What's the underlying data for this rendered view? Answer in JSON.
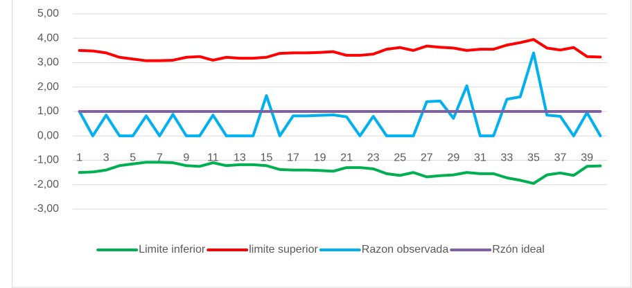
{
  "chart_data": {
    "type": "line",
    "categories": [
      1,
      null,
      3,
      null,
      5,
      null,
      7,
      null,
      9,
      null,
      11,
      null,
      13,
      null,
      15,
      null,
      17,
      null,
      19,
      null,
      21,
      null,
      23,
      null,
      25,
      null,
      27,
      null,
      29,
      null,
      31,
      null,
      33,
      null,
      35,
      null,
      37,
      null,
      39,
      null
    ],
    "series": [
      {
        "name": "Limite inferior",
        "color": "#00b050",
        "values": [
          -1.5,
          -1.48,
          -1.4,
          -1.22,
          -1.15,
          -1.08,
          -1.08,
          -1.1,
          -1.22,
          -1.25,
          -1.1,
          -1.22,
          -1.18,
          -1.18,
          -1.22,
          -1.38,
          -1.4,
          -1.4,
          -1.42,
          -1.45,
          -1.3,
          -1.3,
          -1.35,
          -1.55,
          -1.62,
          -1.5,
          -1.68,
          -1.63,
          -1.6,
          -1.5,
          -1.55,
          -1.55,
          -1.72,
          -1.82,
          -1.95,
          -1.6,
          -1.52,
          -1.62,
          -1.25,
          -1.23
        ]
      },
      {
        "name": "limite superior",
        "color": "#ff0000",
        "values": [
          3.5,
          3.48,
          3.4,
          3.22,
          3.15,
          3.08,
          3.08,
          3.1,
          3.22,
          3.25,
          3.1,
          3.22,
          3.18,
          3.18,
          3.22,
          3.38,
          3.4,
          3.4,
          3.42,
          3.45,
          3.3,
          3.3,
          3.35,
          3.55,
          3.62,
          3.5,
          3.68,
          3.63,
          3.6,
          3.5,
          3.55,
          3.55,
          3.72,
          3.82,
          3.95,
          3.6,
          3.52,
          3.62,
          3.25,
          3.23
        ]
      },
      {
        "name": "Razon observada",
        "color": "#00b0f0",
        "values": [
          1,
          0,
          0.85,
          0,
          0,
          0.82,
          0,
          0.88,
          0,
          0,
          0.85,
          0,
          0,
          0,
          1.65,
          0,
          0.82,
          0.82,
          0.84,
          0.86,
          0.78,
          0,
          0.8,
          0,
          0,
          0,
          1.4,
          1.43,
          0.72,
          2.05,
          0,
          0,
          1.5,
          1.6,
          3.4,
          0.85,
          0.8,
          0,
          0.95,
          0
        ]
      },
      {
        "name": "Rzón ideal",
        "color": "#7f60a8",
        "values": [
          1,
          1,
          1,
          1,
          1,
          1,
          1,
          1,
          1,
          1,
          1,
          1,
          1,
          1,
          1,
          1,
          1,
          1,
          1,
          1,
          1,
          1,
          1,
          1,
          1,
          1,
          1,
          1,
          1,
          1,
          1,
          1,
          1,
          1,
          1,
          1,
          1,
          1,
          1,
          1
        ]
      }
    ],
    "ylim": [
      -3,
      5
    ],
    "yticks": [
      {
        "value": -3,
        "label": "-3,00"
      },
      {
        "value": -2,
        "label": "-2,00"
      },
      {
        "value": -1,
        "label": "-1,00"
      },
      {
        "value": 0,
        "label": "0,00"
      },
      {
        "value": 1,
        "label": "1,00"
      },
      {
        "value": 2,
        "label": "2,00"
      },
      {
        "value": 3,
        "label": "3,00"
      },
      {
        "value": 4,
        "label": "4,00"
      },
      {
        "value": 5,
        "label": "5,00"
      }
    ],
    "grid": true,
    "legend": "bottom"
  }
}
